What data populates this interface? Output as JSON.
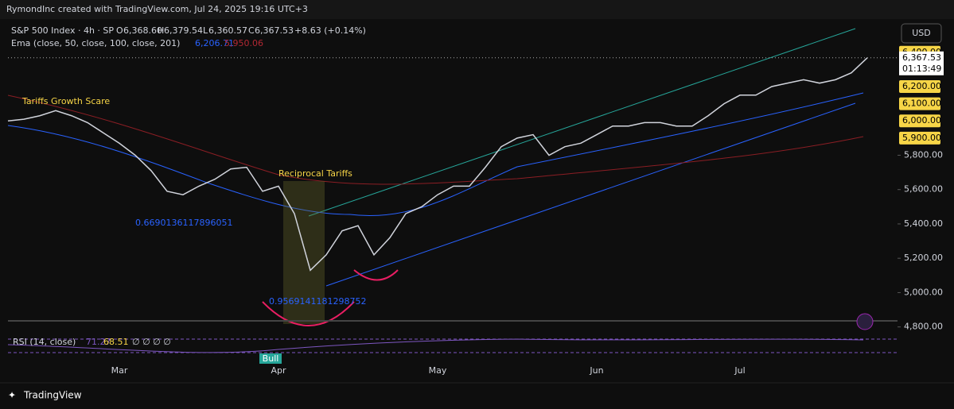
{
  "header": {
    "credit": "RymondInc created with TradingView.com, Jul 24, 2025 19:16 UTC+3",
    "symbol": "S&P 500 Index · 4h · SP",
    "open_label": "O",
    "open": "6,368.60",
    "high_label": "H",
    "high": "6,379.54",
    "low_label": "L",
    "low": "6,360.57",
    "close_label": "C",
    "close": "6,367.53",
    "change": "+8.63 (+0.14%)",
    "ema_label": "Ema (close, 50, close, 100, close, 201)",
    "ema_fast": "6,206.71",
    "ema_slow": "5,950.06"
  },
  "currency": "USD",
  "countdown": "01:13:49",
  "footer": "TradingView",
  "rsi": {
    "label": "RSI (14, close)",
    "value1": "71.27",
    "value2": "68.51",
    "extras": "∅ ∅ ∅ ∅",
    "signal": "Bull"
  },
  "annotations": [
    "Tariffs Growth Scare",
    "Reciprocal Tariffs",
    "0.6690136117896051",
    "0.9569141181298752"
  ],
  "chart_data": {
    "type": "line",
    "color": "#d1d4dc",
    "categories": [
      null,
      null,
      null,
      null,
      null,
      null,
      null,
      "Mar",
      null,
      null,
      null,
      null,
      null,
      null,
      null,
      null,
      null,
      "Apr",
      null,
      null,
      null,
      null,
      null,
      null,
      null,
      null,
      null,
      "May",
      null,
      null,
      null,
      null,
      null,
      null,
      null,
      null,
      null,
      "Jun",
      null,
      null,
      null,
      null,
      null,
      null,
      null,
      null,
      "Jul",
      null,
      null,
      null,
      null,
      null,
      null,
      null,
      null
    ],
    "values": [
      6000,
      6010,
      6030,
      6060,
      6030,
      5990,
      5930,
      5870,
      5800,
      5710,
      5590,
      5570,
      5620,
      5660,
      5720,
      5730,
      5590,
      5620,
      5460,
      5130,
      5220,
      5360,
      5390,
      5220,
      5320,
      5460,
      5500,
      5570,
      5620,
      5620,
      5730,
      5850,
      5900,
      5920,
      5800,
      5850,
      5870,
      5920,
      5970,
      5970,
      5990,
      5990,
      5970,
      5970,
      6030,
      6100,
      6150,
      6150,
      6200,
      6220,
      6240,
      6220,
      6240,
      6280,
      6367.53
    ],
    "last_price_label": "6,367.53",
    "ylim": [
      4780,
      6570
    ],
    "yticks": [
      {
        "value": 4800,
        "label": "4,800.00"
      },
      {
        "value": 5000,
        "label": "5,000.00"
      },
      {
        "value": 5200,
        "label": "5,200.00"
      },
      {
        "value": 5400,
        "label": "5,400.00"
      },
      {
        "value": 5600,
        "label": "5,600.00"
      },
      {
        "value": 5800,
        "label": "5,800.00"
      }
    ],
    "highlighted_ticks": [
      {
        "value": 5900,
        "label": "5,900.00"
      },
      {
        "value": 6000,
        "label": "6,000.00"
      },
      {
        "value": 6100,
        "label": "6,100.00"
      },
      {
        "value": 6200,
        "label": "6,200.00"
      },
      {
        "value": 6400,
        "label": "6,400.00"
      }
    ],
    "highlight_color": "#f7d547"
  }
}
